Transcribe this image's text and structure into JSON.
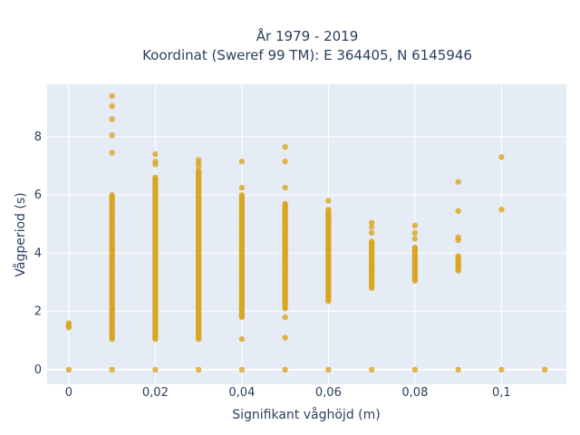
{
  "chart_data": {
    "type": "scatter",
    "title_line1": "År 1979 - 2019",
    "title_line2": "Koordinat (Sweref 99 TM): E 364405, N 6145946",
    "xlabel": "Signifikant våghöjd (m)",
    "ylabel": "Vågperiod (s)",
    "xlim": [
      -0.005,
      0.115
    ],
    "ylim": [
      -0.5,
      9.8
    ],
    "grid": true,
    "x_ticks": [
      0,
      0.02,
      0.04,
      0.06,
      0.08,
      0.1
    ],
    "x_tick_labels": [
      "0",
      "0,02",
      "0,04",
      "0,06",
      "0,08",
      "0,1"
    ],
    "y_ticks": [
      0,
      2,
      4,
      6,
      8
    ],
    "y_tick_labels": [
      "0",
      "2",
      "4",
      "6",
      "8"
    ],
    "colors": {
      "marker": "#DAA520",
      "plot_bg": "#E5ECF6",
      "grid": "#ffffff",
      "text": "#2a3f5f"
    },
    "columns": [
      {
        "x": 0.0,
        "ranges": [
          [
            1.45,
            1.6
          ]
        ],
        "points": [
          0
        ]
      },
      {
        "x": 0.01,
        "ranges": [
          [
            1.05,
            6.0
          ]
        ],
        "points": [
          0,
          7.45,
          8.05,
          8.6,
          9.05,
          9.4
        ]
      },
      {
        "x": 0.02,
        "ranges": [
          [
            1.05,
            6.6
          ]
        ],
        "points": [
          0,
          7.05,
          7.15,
          7.4
        ]
      },
      {
        "x": 0.03,
        "ranges": [
          [
            1.05,
            6.85
          ]
        ],
        "points": [
          0,
          7.0,
          7.1,
          7.2
        ]
      },
      {
        "x": 0.04,
        "ranges": [
          [
            1.8,
            6.0
          ]
        ],
        "points": [
          0,
          1.05,
          6.25,
          7.15
        ]
      },
      {
        "x": 0.05,
        "ranges": [
          [
            2.1,
            5.7
          ]
        ],
        "points": [
          0,
          1.1,
          1.8,
          6.25,
          7.15,
          7.65
        ]
      },
      {
        "x": 0.06,
        "ranges": [
          [
            2.35,
            5.5
          ]
        ],
        "points": [
          0,
          5.05,
          5.8
        ]
      },
      {
        "x": 0.07,
        "ranges": [
          [
            2.8,
            4.4
          ]
        ],
        "points": [
          0,
          4.7,
          4.9,
          5.05
        ]
      },
      {
        "x": 0.08,
        "ranges": [
          [
            3.05,
            4.2
          ]
        ],
        "points": [
          0,
          4.5,
          4.7,
          4.95
        ]
      },
      {
        "x": 0.09,
        "ranges": [
          [
            3.4,
            3.9
          ]
        ],
        "points": [
          0,
          4.45,
          4.55,
          5.45,
          6.45
        ]
      },
      {
        "x": 0.1,
        "ranges": [],
        "points": [
          0,
          5.5,
          7.3
        ]
      },
      {
        "x": 0.11,
        "ranges": [],
        "points": [
          0
        ]
      }
    ]
  }
}
